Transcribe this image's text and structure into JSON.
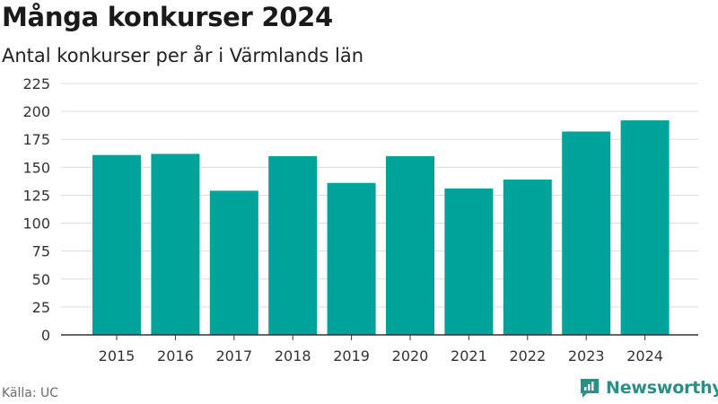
{
  "title": "Många konkurser 2024",
  "subtitle": "Antal konkurser per år i Värmlands län",
  "source": "Källa: UC",
  "brand": "Newsworthy",
  "colors": {
    "bar": "#00a39a",
    "grid": "#dddddd",
    "axis": "#333333",
    "brand": "#2a8f86"
  },
  "chart_data": {
    "type": "bar",
    "categories": [
      "2015",
      "2016",
      "2017",
      "2018",
      "2019",
      "2020",
      "2021",
      "2022",
      "2023",
      "2024"
    ],
    "values": [
      161,
      162,
      129,
      160,
      136,
      160,
      131,
      139,
      182,
      192
    ],
    "ylim": [
      0,
      225
    ],
    "yticks": [
      0,
      25,
      50,
      75,
      100,
      125,
      150,
      175,
      200,
      225
    ],
    "grid": true,
    "legend": "none"
  }
}
